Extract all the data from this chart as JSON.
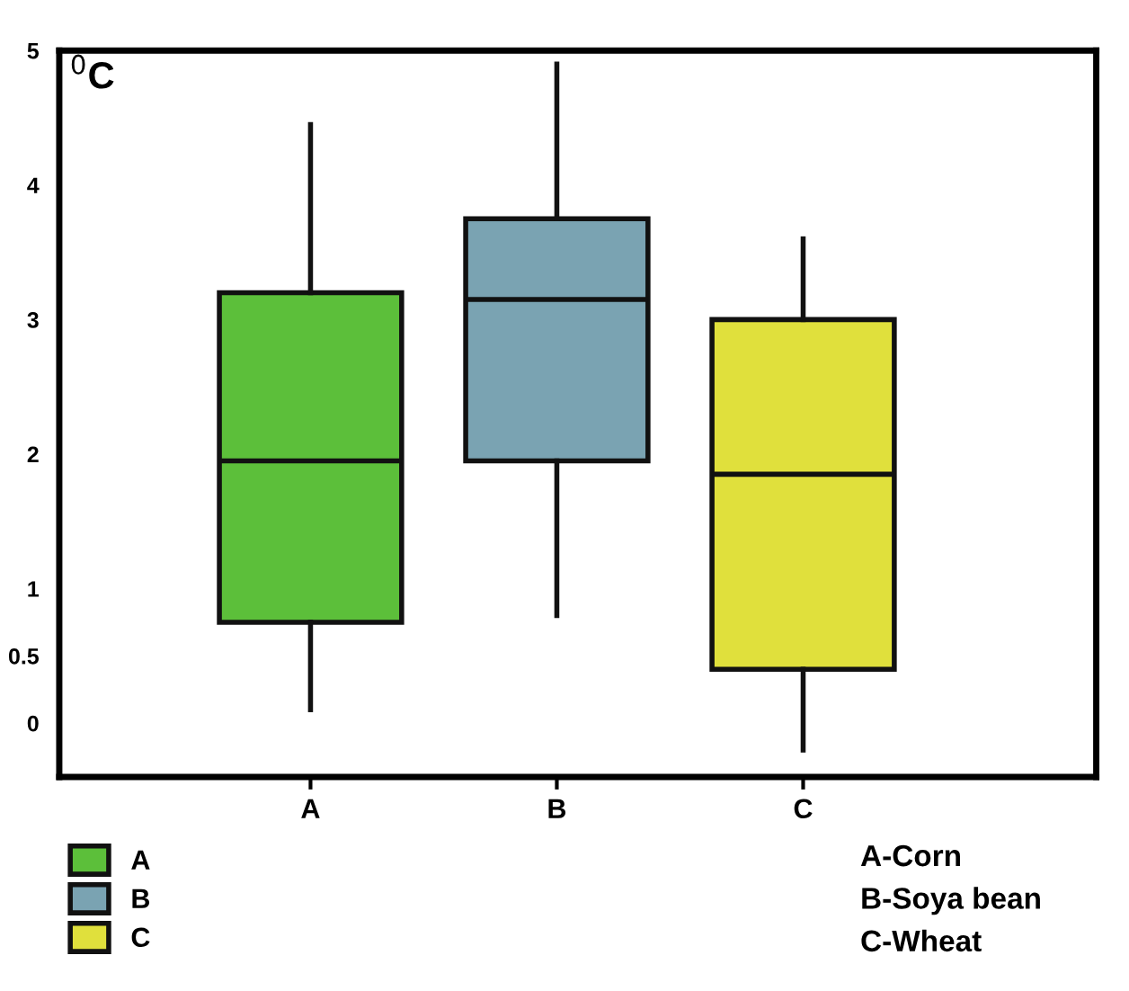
{
  "chart_data": {
    "type": "box",
    "ylabel": "$^{0}$C",
    "categories": [
      "A",
      "B",
      "C"
    ],
    "series": [
      {
        "name": "A",
        "color": "#5cbf3a",
        "boxes": [
          {
            "low": 0.1,
            "q1": 0.75,
            "median": 1.95,
            "q3": 3.2,
            "high": 4.45
          },
          null,
          null
        ]
      },
      {
        "name": "B",
        "color": "#7aa3b2",
        "boxes": [
          null,
          {
            "low": 0.8,
            "q1": 1.95,
            "median": 3.15,
            "q3": 3.75,
            "high": 4.9
          },
          null
        ]
      },
      {
        "name": "C",
        "color": "#e0e03c",
        "boxes": [
          null,
          null,
          {
            "low": -0.2,
            "q1": 0.4,
            "median": 1.85,
            "q3": 3.0,
            "high": 3.6
          }
        ]
      }
    ],
    "ylim": [
      -0.4,
      5
    ],
    "yticks": [
      0,
      0.5,
      1,
      2,
      3,
      4,
      5
    ],
    "legend": "bottom left",
    "grid": false,
    "annotations": [
      "A-Corn",
      "B-Soya bean",
      "C-Wheat"
    ]
  }
}
